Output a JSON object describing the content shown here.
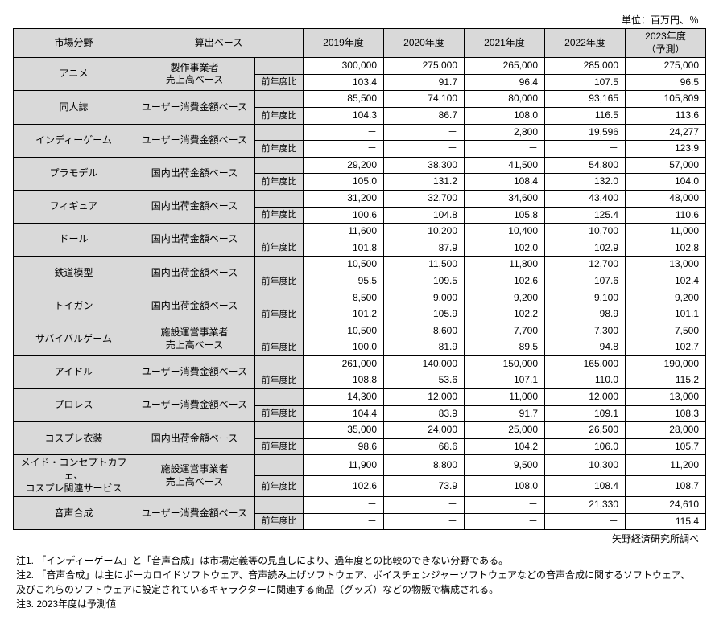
{
  "unit_label": "単位：百万円、％",
  "headers": {
    "category": "市場分野",
    "basis": "算出ベース",
    "years": [
      "2019年度",
      "2020年度",
      "2021年度",
      "2022年度",
      "2023年度\n（予測）"
    ]
  },
  "yoy_label": "前年度比",
  "en_dash": "－",
  "categories": [
    {
      "name": "アニメ",
      "basis": "製作事業者\n売上高ベース",
      "values": [
        "300,000",
        "275,000",
        "265,000",
        "285,000",
        "275,000"
      ],
      "yoy": [
        "103.4",
        "91.7",
        "96.4",
        "107.5",
        "96.5"
      ]
    },
    {
      "name": "同人誌",
      "basis": "ユーザー消費金額ベース",
      "values": [
        "85,500",
        "74,100",
        "80,000",
        "93,165",
        "105,809"
      ],
      "yoy": [
        "104.3",
        "86.7",
        "108.0",
        "116.5",
        "113.6"
      ]
    },
    {
      "name": "インディーゲーム",
      "basis": "ユーザー消費金額ベース",
      "values": [
        "－",
        "－",
        "2,800",
        "19,596",
        "24,277"
      ],
      "yoy": [
        "－",
        "－",
        "－",
        "－",
        "123.9"
      ]
    },
    {
      "name": "プラモデル",
      "basis": "国内出荷金額ベース",
      "values": [
        "29,200",
        "38,300",
        "41,500",
        "54,800",
        "57,000"
      ],
      "yoy": [
        "105.0",
        "131.2",
        "108.4",
        "132.0",
        "104.0"
      ]
    },
    {
      "name": "フィギュア",
      "basis": "国内出荷金額ベース",
      "values": [
        "31,200",
        "32,700",
        "34,600",
        "43,400",
        "48,000"
      ],
      "yoy": [
        "100.6",
        "104.8",
        "105.8",
        "125.4",
        "110.6"
      ]
    },
    {
      "name": "ドール",
      "basis": "国内出荷金額ベース",
      "values": [
        "11,600",
        "10,200",
        "10,400",
        "10,700",
        "11,000"
      ],
      "yoy": [
        "101.8",
        "87.9",
        "102.0",
        "102.9",
        "102.8"
      ]
    },
    {
      "name": "鉄道模型",
      "basis": "国内出荷金額ベース",
      "values": [
        "10,500",
        "11,500",
        "11,800",
        "12,700",
        "13,000"
      ],
      "yoy": [
        "95.5",
        "109.5",
        "102.6",
        "107.6",
        "102.4"
      ]
    },
    {
      "name": "トイガン",
      "basis": "国内出荷金額ベース",
      "values": [
        "8,500",
        "9,000",
        "9,200",
        "9,100",
        "9,200"
      ],
      "yoy": [
        "101.2",
        "105.9",
        "102.2",
        "98.9",
        "101.1"
      ]
    },
    {
      "name": "サバイバルゲーム",
      "basis": "施設運営事業者\n売上高ベース",
      "values": [
        "10,500",
        "8,600",
        "7,700",
        "7,300",
        "7,500"
      ],
      "yoy": [
        "100.0",
        "81.9",
        "89.5",
        "94.8",
        "102.7"
      ]
    },
    {
      "name": "アイドル",
      "basis": "ユーザー消費金額ベース",
      "values": [
        "261,000",
        "140,000",
        "150,000",
        "165,000",
        "190,000"
      ],
      "yoy": [
        "108.8",
        "53.6",
        "107.1",
        "110.0",
        "115.2"
      ]
    },
    {
      "name": "プロレス",
      "basis": "ユーザー消費金額ベース",
      "values": [
        "14,300",
        "12,000",
        "11,000",
        "12,000",
        "13,000"
      ],
      "yoy": [
        "104.4",
        "83.9",
        "91.7",
        "109.1",
        "108.3"
      ]
    },
    {
      "name": "コスプレ衣装",
      "basis": "国内出荷金額ベース",
      "values": [
        "35,000",
        "24,000",
        "25,000",
        "26,500",
        "28,000"
      ],
      "yoy": [
        "98.6",
        "68.6",
        "104.2",
        "106.0",
        "105.7"
      ]
    },
    {
      "name": "メイド・コンセプトカフェ、\nコスプレ関連サービス",
      "basis": "施設運営事業者\n売上高ベース",
      "values": [
        "11,900",
        "8,800",
        "9,500",
        "10,300",
        "11,200"
      ],
      "yoy": [
        "102.6",
        "73.9",
        "108.0",
        "108.4",
        "108.7"
      ]
    },
    {
      "name": "音声合成",
      "basis": "ユーザー消費金額ベース",
      "values": [
        "－",
        "－",
        "－",
        "21,330",
        "24,610"
      ],
      "yoy": [
        "－",
        "－",
        "－",
        "－",
        "115.4"
      ]
    }
  ],
  "source": "矢野経済研究所調べ",
  "notes": [
    "注1. 「インディーゲーム」と「音声合成」は市場定義等の見直しにより、過年度との比較のできない分野である。",
    "注2. 「音声合成」は主にボーカロイドソフトウェア、音声読み上げソフトウェア、ボイスチェンジャーソフトウェアなどの音声合成に関するソフトウェア、及びこれらのソフトウェアに設定されているキャラクターに関連する商品（グッズ）などの物販で構成される。",
    "注3. 2023年度は予測値"
  ]
}
